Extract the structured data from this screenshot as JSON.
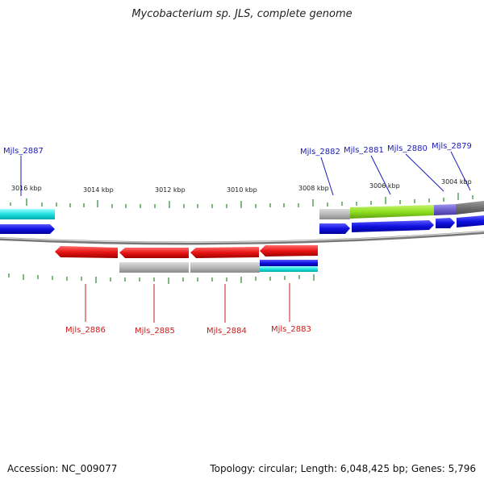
{
  "title": "Mycobacterium sp. JLS, complete genome",
  "footer": {
    "accession": "Accession: NC_009077",
    "genome_info": "Topology: circular; Length: 6,048,425 bp; Genes: 5,796"
  },
  "scale_labels": [
    "3016 kbp",
    "3014 kbp",
    "3012 kbp",
    "3010 kbp",
    "3008 kbp",
    "3006 kbp",
    "3004 kbp"
  ],
  "top_genes": [
    "Mjls_2887",
    "Mjls_2882",
    "Mjls_2881",
    "Mjls_2880",
    "Mjls_2879"
  ],
  "bottom_genes": [
    "Mjls_2886",
    "Mjls_2885",
    "Mjls_2884",
    "Mjls_2883"
  ],
  "colors": {
    "forward_gene": "#1010e0",
    "reverse_gene": "#e81414",
    "cyan_feature": "#20e0e0",
    "gray_feature": "#b8b8b8",
    "green_feature": "#90e020",
    "purple_feature": "#7060d0",
    "tick": "#2a8a2a",
    "backbone": "#888888",
    "label_blue": "#1a1ab8",
    "label_red": "#cc1b1b"
  }
}
